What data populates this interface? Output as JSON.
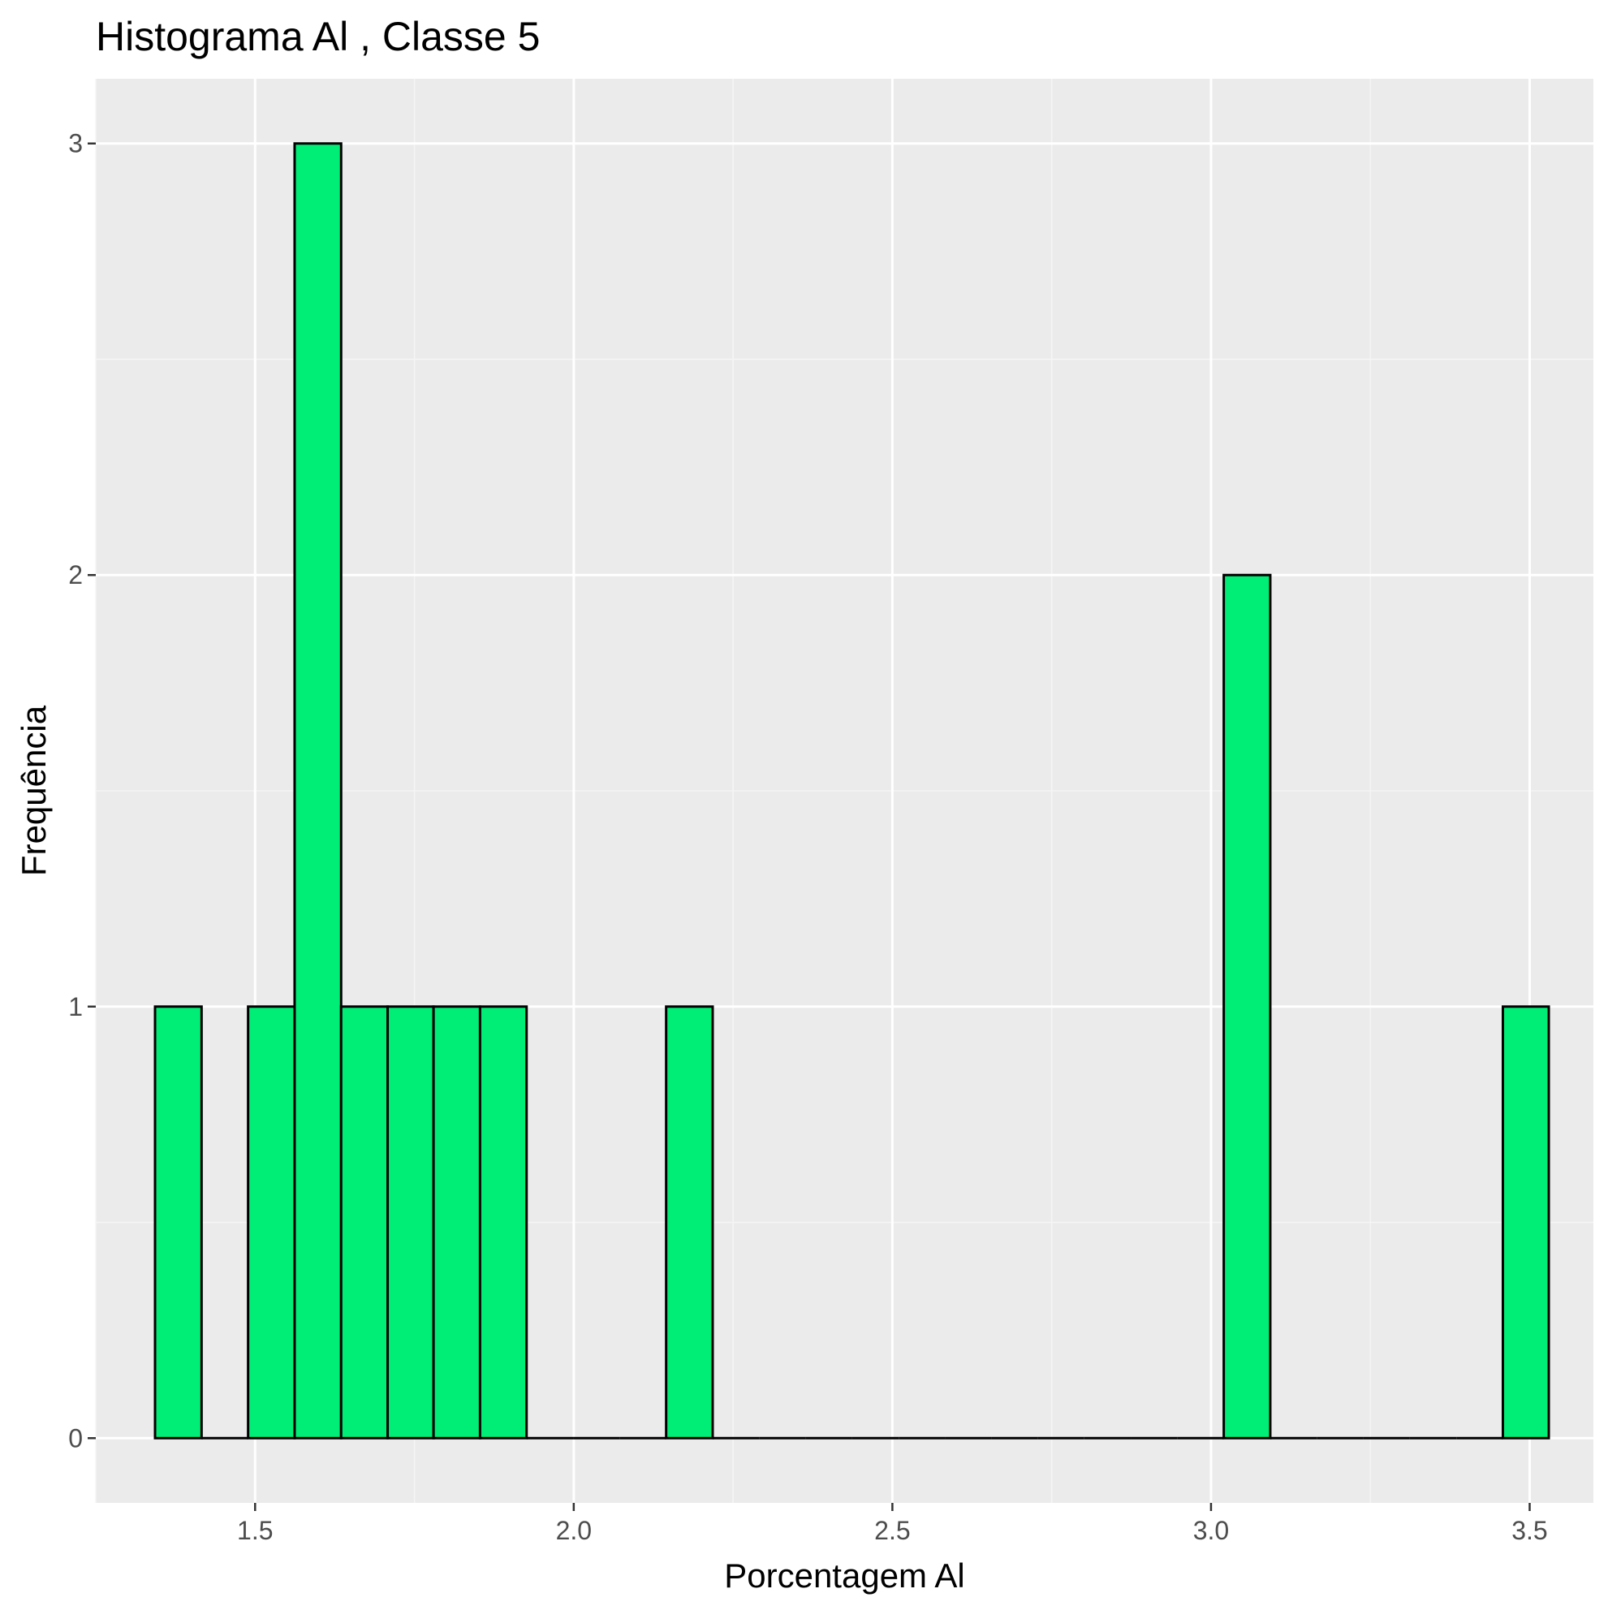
{
  "chart_data": {
    "type": "bar",
    "subtype": "histogram",
    "title": "Histograma  Al , Classe  5",
    "xlabel": "Porcentagem Al",
    "ylabel": "Frequência",
    "x_ticks": [
      "1.5",
      "2.0",
      "2.5",
      "3.0",
      "3.5"
    ],
    "x_tick_values": [
      1.5,
      2.0,
      2.5,
      3.0,
      3.5
    ],
    "y_ticks": [
      "0",
      "1",
      "2",
      "3"
    ],
    "y_tick_values": [
      0,
      1,
      2,
      3
    ],
    "xlim": [
      1.25,
      3.6
    ],
    "ylim": [
      -0.15,
      3.15
    ],
    "bin_width": 0.0729,
    "bins": [
      {
        "x0": 1.343,
        "x1": 1.416,
        "count": 1
      },
      {
        "x0": 1.416,
        "x1": 1.489,
        "count": 0
      },
      {
        "x0": 1.489,
        "x1": 1.562,
        "count": 1
      },
      {
        "x0": 1.562,
        "x1": 1.635,
        "count": 3
      },
      {
        "x0": 1.635,
        "x1": 1.708,
        "count": 1
      },
      {
        "x0": 1.708,
        "x1": 1.78,
        "count": 1
      },
      {
        "x0": 1.78,
        "x1": 1.853,
        "count": 1
      },
      {
        "x0": 1.853,
        "x1": 1.926,
        "count": 1
      },
      {
        "x0": 1.926,
        "x1": 1.999,
        "count": 0
      },
      {
        "x0": 1.999,
        "x1": 2.072,
        "count": 0
      },
      {
        "x0": 2.072,
        "x1": 2.145,
        "count": 0
      },
      {
        "x0": 2.145,
        "x1": 2.218,
        "count": 1
      },
      {
        "x0": 2.218,
        "x1": 2.291,
        "count": 0
      },
      {
        "x0": 2.291,
        "x1": 2.364,
        "count": 0
      },
      {
        "x0": 2.364,
        "x1": 2.437,
        "count": 0
      },
      {
        "x0": 2.437,
        "x1": 2.51,
        "count": 0
      },
      {
        "x0": 2.51,
        "x1": 2.583,
        "count": 0
      },
      {
        "x0": 2.583,
        "x1": 2.655,
        "count": 0
      },
      {
        "x0": 2.655,
        "x1": 2.728,
        "count": 0
      },
      {
        "x0": 2.728,
        "x1": 2.801,
        "count": 0
      },
      {
        "x0": 2.801,
        "x1": 2.874,
        "count": 0
      },
      {
        "x0": 2.874,
        "x1": 2.947,
        "count": 0
      },
      {
        "x0": 2.947,
        "x1": 3.02,
        "count": 0
      },
      {
        "x0": 3.02,
        "x1": 3.093,
        "count": 2
      },
      {
        "x0": 3.093,
        "x1": 3.166,
        "count": 0
      },
      {
        "x0": 3.166,
        "x1": 3.239,
        "count": 0
      },
      {
        "x0": 3.239,
        "x1": 3.312,
        "count": 0
      },
      {
        "x0": 3.312,
        "x1": 3.385,
        "count": 0
      },
      {
        "x0": 3.385,
        "x1": 3.458,
        "count": 0
      },
      {
        "x0": 3.458,
        "x1": 3.53,
        "count": 1
      }
    ],
    "grid": true,
    "legend": "none",
    "colors": {
      "bar_fill": "#00EE76",
      "bar_stroke": "#000000",
      "panel_background": "#EBEBEB",
      "grid_major": "#FFFFFF",
      "grid_minor": "#F5F5F5",
      "tick_label": "#4D4D4D",
      "tick_mark": "#333333"
    }
  }
}
